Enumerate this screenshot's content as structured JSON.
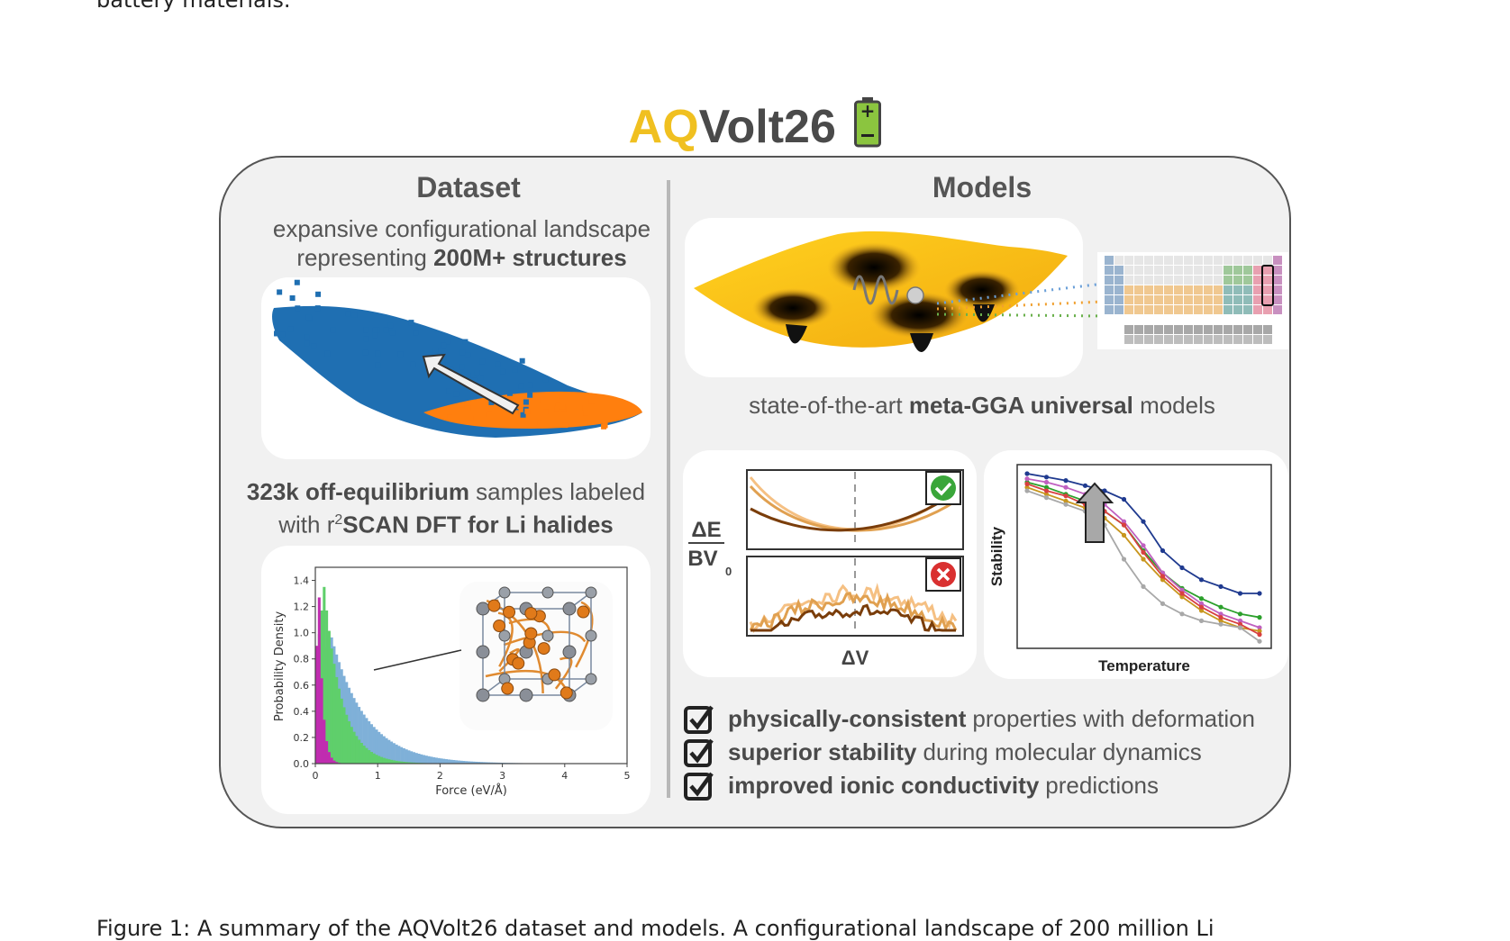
{
  "page": {
    "intro_tail": "battery materials.",
    "caption": "Figure 1: A summary of the AQVolt26 dataset and models. A configurational landscape of 200 million Li"
  },
  "figure": {
    "title_accent": "AQ",
    "title_main": "Volt26",
    "colors": {
      "accent": "#f0c020",
      "battery": "#8bc53f",
      "blue": "#1f6fb2",
      "orange": "#ff7f0e",
      "green": "#2ca02c",
      "magenta": "#b3269e"
    },
    "dataset": {
      "header": "Dataset",
      "desc_line1": "expansive configurational landscape",
      "desc_line2_pre": "representing ",
      "desc_line2_bold": "200M+ structures",
      "samples_bold": "323k off-equilibrium",
      "samples_rest": " samples labeled",
      "samples_line2_pre": "with r",
      "samples_sup": "2",
      "samples_line2_bold": "SCAN DFT for Li halides",
      "hist": {
        "ylabel": "Probability Density",
        "xlabel": "Force (eV/Å)",
        "yticks": [
          "0.0",
          "0.2",
          "0.4",
          "0.6",
          "0.8",
          "1.0",
          "1.2",
          "1.4"
        ],
        "xticks": [
          "0",
          "1",
          "2",
          "3",
          "4",
          "5"
        ]
      }
    },
    "models": {
      "header": "Models",
      "desc_pre": "state-of-the-art ",
      "desc_bold": "meta-GGA universal",
      "desc_post": " models",
      "ev": {
        "num": "ΔE",
        "den": "BV",
        "den_sub": "0",
        "xlabel": "ΔV"
      },
      "stab": {
        "ylabel": "Stability",
        "xlabel": "Temperature"
      },
      "checks": [
        {
          "bold": "physically-consistent",
          "rest": "properties with deformation"
        },
        {
          "bold": "superior stability",
          "rest": "during molecular dynamics"
        },
        {
          "bold": "improved ionic conductivity",
          "rest": "predictions"
        }
      ]
    }
  }
}
